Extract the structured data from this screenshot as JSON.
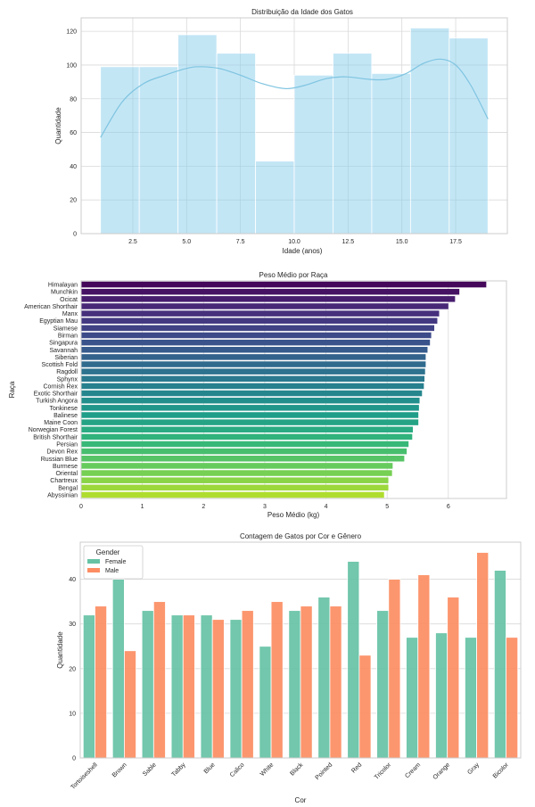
{
  "chart_data": [
    {
      "type": "bar",
      "subtype": "histogram_with_kde",
      "title": "Distribuição da Idade dos Gatos",
      "xlabel": "Idade (anos)",
      "ylabel": "Quantidade",
      "bin_edges": [
        1.0,
        2.8,
        4.6,
        6.4,
        8.2,
        10.0,
        11.8,
        13.6,
        15.4,
        17.2,
        19.0
      ],
      "values": [
        99,
        99,
        118,
        107,
        43,
        94,
        107,
        95,
        122,
        116
      ],
      "kde": {
        "x": [
          1,
          2,
          3,
          4,
          5,
          5.6,
          6.5,
          7.5,
          8.5,
          9.6,
          10.5,
          11.5,
          12.4,
          13.5,
          14.3,
          15.2,
          16,
          16.8,
          17.5,
          18.2,
          19
        ],
        "y": [
          57,
          78,
          89,
          94,
          98,
          99,
          98,
          94,
          89,
          86,
          88,
          92,
          93,
          91.5,
          91.5,
          95,
          101,
          103.5,
          100,
          88,
          68
        ]
      },
      "xticks": [
        "2.5",
        "5.0",
        "7.5",
        "10.0",
        "12.5",
        "15.0",
        "17.5"
      ],
      "xtick_values": [
        2.5,
        5.0,
        7.5,
        10.0,
        12.5,
        15.0,
        17.5
      ],
      "yticks": [
        "0",
        "20",
        "40",
        "60",
        "80",
        "100",
        "120"
      ],
      "ytick_values": [
        0,
        20,
        40,
        60,
        80,
        100,
        120
      ],
      "xlim": [
        0.1,
        19.9
      ],
      "ylim": [
        0,
        128
      ],
      "grid": true,
      "colors": {
        "bar": "#87ceeb",
        "kde": "#7ec4e0"
      }
    },
    {
      "type": "bar",
      "orientation": "horizontal",
      "title": "Peso Médio por Raça",
      "xlabel": "Peso Médio (kg)",
      "ylabel": "Raça",
      "categories": [
        "Himalayan",
        "Munchkin",
        "Ocicat",
        "American Shorthair",
        "Manx",
        "Egyptian Mau",
        "Siamese",
        "Birman",
        "Singapura",
        "Savannah",
        "Siberian",
        "Scottish Fold",
        "Ragdoll",
        "Sphynx",
        "Cornish Rex",
        "Exotic Shorthair",
        "Turkish Angora",
        "Tonkinese",
        "Balinese",
        "Maine Coon",
        "Norwegian Forest",
        "British Shorthair",
        "Persian",
        "Devon Rex",
        "Russian Blue",
        "Burmese",
        "Oriental",
        "Chartreux",
        "Bengal",
        "Abyssinian"
      ],
      "values": [
        6.62,
        6.18,
        6.11,
        6.0,
        5.85,
        5.82,
        5.77,
        5.72,
        5.7,
        5.66,
        5.63,
        5.63,
        5.62,
        5.61,
        5.6,
        5.57,
        5.53,
        5.52,
        5.51,
        5.51,
        5.42,
        5.41,
        5.35,
        5.32,
        5.28,
        5.09,
        5.08,
        5.02,
        5.02,
        4.95
      ],
      "xticks": [
        "0",
        "1",
        "2",
        "3",
        "4",
        "5",
        "6"
      ],
      "xtick_values": [
        0,
        1,
        2,
        3,
        4,
        5,
        6
      ],
      "xlim": [
        0,
        6.95
      ],
      "grid": true,
      "palette": "viridis"
    },
    {
      "type": "bar",
      "subtype": "grouped",
      "title": "Contagem de Gatos por Cor e Gênero",
      "xlabel": "Cor",
      "ylabel": "Quantidade",
      "categories": [
        "Tortoiseshell",
        "Brown",
        "Sable",
        "Tabby",
        "Blue",
        "Calico",
        "White",
        "Black",
        "Pointed",
        "Red",
        "Tricolor",
        "Cream",
        "Orange",
        "Gray",
        "Bicolor"
      ],
      "series": [
        {
          "name": "Female",
          "color": "#66c2a5",
          "values": [
            32,
            40,
            33,
            32,
            32,
            31,
            25,
            33,
            36,
            44,
            33,
            27,
            28,
            27,
            42
          ]
        },
        {
          "name": "Male",
          "color": "#fc8d62",
          "values": [
            34,
            24,
            35,
            32,
            31,
            33,
            35,
            34,
            34,
            23,
            40,
            41,
            36,
            46,
            27
          ]
        }
      ],
      "legend": {
        "title": "Gender",
        "position": "top-left"
      },
      "yticks": [
        "0",
        "10",
        "20",
        "30",
        "40"
      ],
      "ytick_values": [
        0,
        10,
        20,
        30,
        40
      ],
      "ylim": [
        0,
        48.3
      ],
      "grid": true
    }
  ]
}
